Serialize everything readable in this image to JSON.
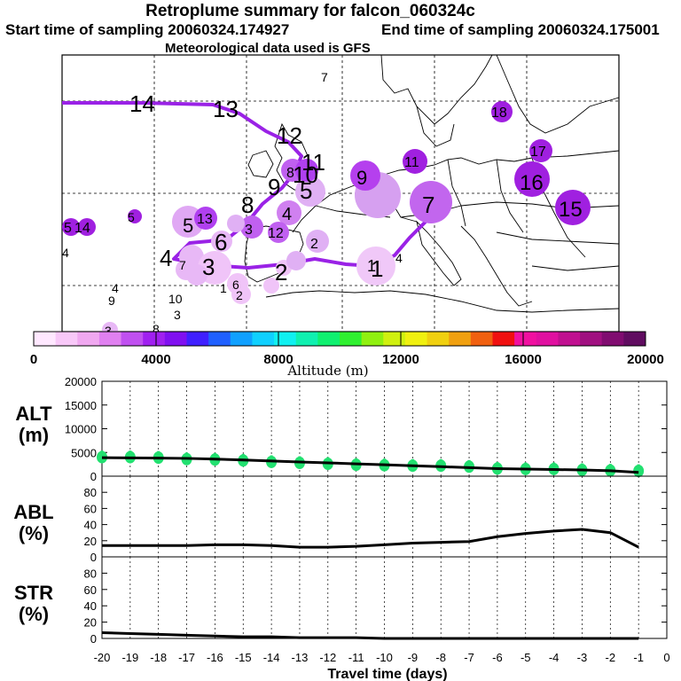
{
  "header": {
    "title": "Retroplume summary for falcon_060324c",
    "start": "Start time of sampling 20060324.174927",
    "end": "End time of sampling 20060324.175001",
    "met": "Meteorological data used is GFS"
  },
  "colors": {
    "plume": "#9a22e6",
    "marker_light": "#e8a8f0",
    "marker_mid": "#cc66ee",
    "marker_dark": "#a020e0",
    "scatter": "#22e070",
    "line": "#000000"
  },
  "colorbar": {
    "ticks": [
      "0",
      "4000",
      "8000",
      "12000",
      "16000",
      "20000"
    ],
    "label": "Altitude (m)",
    "colors": [
      "#ffe8ff",
      "#f8c8f8",
      "#f0a8f0",
      "#e080f0",
      "#c050f0",
      "#a020f0",
      "#8010f0",
      "#4020ff",
      "#2060ff",
      "#10a0ff",
      "#10d0ff",
      "#10f0f0",
      "#10f0b0",
      "#10f070",
      "#30f030",
      "#90f010",
      "#d0f010",
      "#f0f010",
      "#f0d010",
      "#f0a010",
      "#f06010",
      "#f01010",
      "#f010a0",
      "#e010a0",
      "#c01090",
      "#a01080",
      "#800c70",
      "#600c60"
    ]
  },
  "map_labels": [
    {
      "t": "14",
      "size": "b"
    },
    {
      "t": "13",
      "size": "b"
    },
    {
      "t": "12",
      "size": "b"
    },
    {
      "t": "11",
      "size": "b"
    },
    {
      "t": "10",
      "size": "b"
    },
    {
      "t": "9",
      "size": "b"
    },
    {
      "t": "8",
      "size": "b"
    },
    {
      "t": "7",
      "size": "b"
    },
    {
      "t": "6",
      "size": "b"
    },
    {
      "t": "5",
      "size": "b"
    },
    {
      "t": "4",
      "size": "b"
    },
    {
      "t": "3",
      "size": "b"
    },
    {
      "t": "2",
      "size": "b"
    },
    {
      "t": "1",
      "size": "b"
    },
    {
      "t": "9",
      "size": "m"
    },
    {
      "t": "8",
      "size": "m"
    },
    {
      "t": "7",
      "size": "m"
    },
    {
      "t": "5",
      "size": "m"
    },
    {
      "t": "4",
      "size": "m"
    },
    {
      "t": "3",
      "size": "m"
    },
    {
      "t": "2",
      "size": "m"
    },
    {
      "t": "1",
      "size": "m"
    },
    {
      "t": "18",
      "size": "m"
    },
    {
      "t": "17",
      "size": "m"
    },
    {
      "t": "16",
      "size": "b"
    },
    {
      "t": "15",
      "size": "b"
    },
    {
      "t": "14",
      "size": "m"
    },
    {
      "t": "13",
      "size": "m"
    },
    {
      "t": "12",
      "size": "m"
    },
    {
      "t": "11",
      "size": "m"
    },
    {
      "t": "10",
      "size": "s"
    },
    {
      "t": "9",
      "size": "s"
    },
    {
      "t": "8",
      "size": "s"
    },
    {
      "t": "7",
      "size": "s"
    },
    {
      "t": "6",
      "size": "s"
    },
    {
      "t": "5",
      "size": "s"
    },
    {
      "t": "4",
      "size": "s"
    },
    {
      "t": "3",
      "size": "s"
    },
    {
      "t": "2",
      "size": "s"
    },
    {
      "t": "1",
      "size": "s"
    },
    {
      "t": "5",
      "size": "m"
    },
    {
      "t": "4",
      "size": "m"
    },
    {
      "t": "3",
      "size": "m"
    },
    {
      "t": "4",
      "size": "m"
    },
    {
      "t": "9",
      "size": "s"
    },
    {
      "t": "10",
      "size": "s"
    },
    {
      "t": "3",
      "size": "s"
    },
    {
      "t": "8",
      "size": "s"
    },
    {
      "t": "5",
      "size": "s"
    },
    {
      "t": "6",
      "size": "s"
    },
    {
      "t": "7",
      "size": "s"
    }
  ],
  "chart_data": [
    {
      "type": "line",
      "name": "ALT",
      "ylabel": "ALT\n(m)",
      "ylabel_lines": [
        "ALT",
        "(m)"
      ],
      "ylim": [
        0,
        20000
      ],
      "yticks": [
        "0",
        "5000",
        "10000",
        "15000",
        "20000"
      ],
      "x": [
        -20,
        -19,
        -18,
        -17,
        -16,
        -15,
        -14,
        -13,
        -12,
        -11,
        -10,
        -9,
        -8,
        -7,
        -6,
        -5,
        -4,
        -3,
        -2,
        -1
      ],
      "series": [
        {
          "name": "mean altitude",
          "values": [
            3900,
            3850,
            3800,
            3750,
            3600,
            3400,
            3200,
            3000,
            2800,
            2600,
            2400,
            2200,
            2000,
            1800,
            1600,
            1500,
            1400,
            1300,
            1150,
            800
          ]
        },
        {
          "name": "particle spread",
          "values": [
            4000,
            4000,
            3900,
            3600,
            3500,
            3300,
            3000,
            2800,
            2600,
            2400,
            2300,
            2200,
            2200,
            2000,
            1600,
            1500,
            1500,
            1300,
            1200,
            1100
          ]
        }
      ]
    },
    {
      "type": "line",
      "name": "ABL",
      "ylabel_lines": [
        "ABL",
        "(%)"
      ],
      "ylim": [
        0,
        100
      ],
      "yticks": [
        "0",
        "20",
        "40",
        "60",
        "80"
      ],
      "x": [
        -20,
        -19,
        -18,
        -17,
        -16,
        -15,
        -14,
        -13,
        -12,
        -11,
        -10,
        -9,
        -8,
        -7,
        -6,
        -5,
        -4,
        -3,
        -2,
        -1
      ],
      "values": [
        14,
        14,
        14,
        14,
        15,
        15,
        14,
        12,
        12,
        13,
        15,
        17,
        18,
        19,
        25,
        29,
        32,
        34,
        30,
        12
      ]
    },
    {
      "type": "line",
      "name": "STR",
      "ylabel_lines": [
        "STR",
        "(%)"
      ],
      "ylim": [
        0,
        100
      ],
      "yticks": [
        "0",
        "20",
        "40",
        "60",
        "80"
      ],
      "x": [
        -20,
        -19,
        -18,
        -17,
        -16,
        -15,
        -14,
        -13,
        -12,
        -11,
        -10,
        -9,
        -8,
        -7,
        -6,
        -5,
        -4,
        -3,
        -2,
        -1
      ],
      "values": [
        7,
        6,
        5,
        4,
        3,
        2,
        2,
        1,
        1,
        1,
        0,
        0,
        0,
        0,
        0,
        0,
        0,
        0,
        0,
        0
      ]
    }
  ],
  "xaxis": {
    "label": "Travel time (days)",
    "ticks": [
      "-20",
      "-19",
      "-18",
      "-17",
      "-16",
      "-15",
      "-14",
      "-13",
      "-12",
      "-11",
      "-10",
      "-9",
      "-8",
      "-7",
      "-6",
      "-5",
      "-4",
      "-3",
      "-2",
      "-1",
      "0"
    ]
  }
}
